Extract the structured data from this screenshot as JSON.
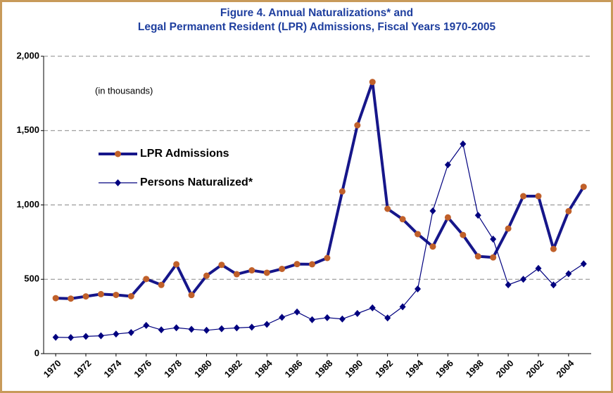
{
  "chart_data": {
    "type": "line",
    "title": "Figure 4.  Annual Naturalizations* and",
    "subtitle": "Legal Permanent Resident (LPR) Admissions, Fiscal Years 1970-2005",
    "annotation": "(in thousands)",
    "x": [
      1970,
      1971,
      1972,
      1973,
      1974,
      1975,
      1976,
      1977,
      1978,
      1979,
      1980,
      1981,
      1982,
      1983,
      1984,
      1985,
      1986,
      1987,
      1988,
      1989,
      1990,
      1991,
      1992,
      1993,
      1994,
      1995,
      1996,
      1997,
      1998,
      1999,
      2000,
      2001,
      2002,
      2003,
      2004,
      2005
    ],
    "series": [
      {
        "name": "LPR Admissions",
        "color": "#16168a",
        "marker_color": "#c0602a",
        "marker": "circle",
        "line_width": 4,
        "values": [
          373,
          370,
          385,
          400,
          395,
          386,
          502,
          462,
          601,
          394,
          524,
          597,
          534,
          560,
          544,
          570,
          602,
          601,
          643,
          1091,
          1536,
          1827,
          974,
          904,
          804,
          720,
          916,
          798,
          654,
          647,
          841,
          1059,
          1059,
          704,
          958,
          1122
        ]
      },
      {
        "name": "Persons Naturalized*",
        "color": "#00007f",
        "marker_color": "#00007f",
        "marker": "diamond",
        "line_width": 1.2,
        "values": [
          110,
          108,
          116,
          120,
          132,
          142,
          190,
          160,
          174,
          164,
          157,
          167,
          173,
          178,
          197,
          244,
          280,
          228,
          242,
          233,
          270,
          308,
          240,
          315,
          435,
          960,
          1270,
          1410,
          930,
          770,
          463,
          500,
          573,
          462,
          537,
          604
        ]
      }
    ],
    "xlim": [
      1969.2,
      2005.5
    ],
    "xticks": [
      1970,
      1972,
      1974,
      1976,
      1978,
      1980,
      1982,
      1984,
      1986,
      1988,
      1990,
      1992,
      1994,
      1996,
      1998,
      2000,
      2002,
      2004
    ],
    "ylim": [
      0,
      2000
    ],
    "yticks": [
      0,
      500,
      {
        "value": 1000,
        "label": "1,000"
      },
      {
        "value": 1500,
        "label": "1,500"
      },
      {
        "value": 2000,
        "label": "2,000"
      }
    ],
    "grid": true,
    "legend": "left"
  }
}
